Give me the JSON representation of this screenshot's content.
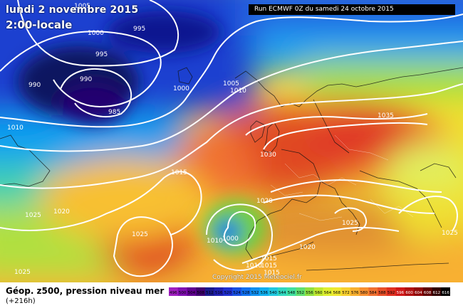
{
  "header": {
    "date": "lundi 2 novembre 2015",
    "time": "2:00-locale",
    "run": "Run ECMWF 0Z du samedi 24 octobre 2015"
  },
  "footer": {
    "title": "Géop. z500, pression niveau mer",
    "subtitle": "(+216h)",
    "copyright": "Copyright 2015 Meteociel.fr"
  },
  "isobars": [
    "1005",
    "1000",
    "995",
    "995",
    "990",
    "990",
    "985",
    "1000",
    "1005",
    "1010",
    "1010",
    "1015",
    "1020",
    "1025",
    "1025",
    "1030",
    "1035",
    "1020",
    "1025",
    "1025",
    "1020",
    "1015",
    "1010",
    "1000",
    "1015",
    "1015",
    "1025",
    "1010"
  ],
  "scale": {
    "labels": [
      "496",
      "500",
      "504",
      "508",
      "512",
      "516",
      "520",
      "524",
      "528",
      "532",
      "536",
      "540",
      "544",
      "548",
      "552",
      "556",
      "560",
      "564",
      "568",
      "572",
      "576",
      "580",
      "584",
      "588",
      "592",
      "596",
      "600",
      "604",
      "608",
      "612",
      "616"
    ],
    "colors": [
      "#a020c0",
      "#8010b0",
      "#600090",
      "#400070",
      "#1a1a8c",
      "#2020b0",
      "#2030d0",
      "#1850e0",
      "#1070f0",
      "#1090f0",
      "#10b0f0",
      "#20c8e0",
      "#30d8c0",
      "#40e0a0",
      "#60e070",
      "#90e040",
      "#c0e830",
      "#e0f030",
      "#f0e830",
      "#f8d030",
      "#f8b030",
      "#f89030",
      "#f07030",
      "#e85028",
      "#e03020",
      "#d01818",
      "#b01010",
      "#900808",
      "#600000",
      "#300000",
      "#000000"
    ]
  }
}
